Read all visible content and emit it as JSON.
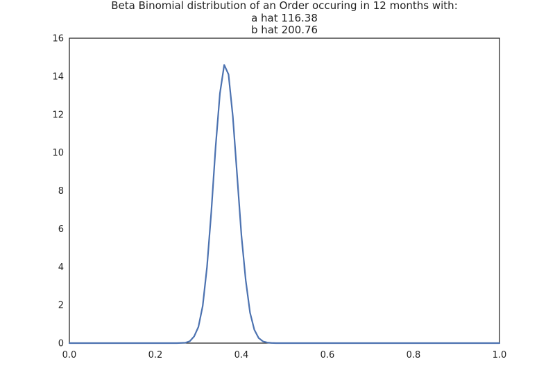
{
  "chart_data": {
    "type": "line",
    "title": [
      "Beta Binomial distribution of an Order occuring in 12 months with:",
      "a hat 116.38",
      "b hat 200.76"
    ],
    "xlabel": "",
    "ylabel": "",
    "xlim": [
      0.0,
      1.0
    ],
    "ylim": [
      0,
      16
    ],
    "grid": false,
    "x_ticks": [
      "0.0",
      "0.2",
      "0.4",
      "0.6",
      "0.8",
      "1.0"
    ],
    "y_ticks": [
      "0",
      "2",
      "4",
      "6",
      "8",
      "10",
      "12",
      "14",
      "16"
    ],
    "series": [
      {
        "color": "#4c72b0",
        "x": [
          0.0,
          0.25,
          0.27,
          0.28,
          0.29,
          0.3,
          0.31,
          0.32,
          0.33,
          0.34,
          0.35,
          0.36,
          0.37,
          0.38,
          0.39,
          0.4,
          0.41,
          0.42,
          0.43,
          0.44,
          0.45,
          0.46,
          0.47,
          0.48,
          0.5,
          1.0
        ],
        "y": [
          0.0,
          0.0,
          0.02,
          0.1,
          0.35,
          0.85,
          1.95,
          4.0,
          6.9,
          10.3,
          13.1,
          14.6,
          14.1,
          11.9,
          8.8,
          5.65,
          3.3,
          1.6,
          0.7,
          0.27,
          0.09,
          0.03,
          0.01,
          0.0,
          0.0,
          0.0
        ]
      }
    ]
  }
}
